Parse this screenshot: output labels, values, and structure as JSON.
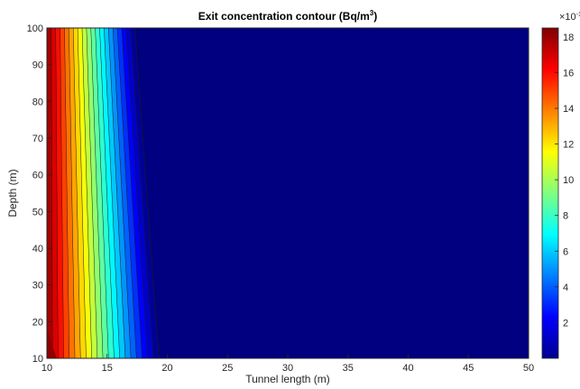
{
  "chart_data": {
    "type": "heatmap",
    "plot_style": "filled-contour",
    "title": "Exit concentration contour (Bq/m",
    "title_superscript": "3",
    "title_close": ")",
    "xlabel": "Tunnel length (m)",
    "ylabel": "Depth (m)",
    "xlim": [
      10,
      50
    ],
    "ylim": [
      10,
      100
    ],
    "x_ticks": [
      "10",
      "15",
      "20",
      "25",
      "30",
      "35",
      "40",
      "45",
      "50"
    ],
    "y_ticks": [
      "10",
      "20",
      "30",
      "40",
      "50",
      "60",
      "70",
      "80",
      "90",
      "100"
    ],
    "colorbar": {
      "colormap": "jet",
      "exponent_label": "×10",
      "exponent_superscript": "-1",
      "ticks": [
        "2",
        "4",
        "6",
        "8",
        "10",
        "12",
        "14",
        "16",
        "18"
      ],
      "range": [
        0,
        18.5
      ]
    },
    "contour_levels": 20,
    "field": {
      "max_value": 18.2,
      "max_at": [
        10,
        10
      ],
      "boundary_at_y10": 19.3,
      "boundary_at_y100": 17.3,
      "value_beyond_boundary": 0
    },
    "grid": false
  }
}
